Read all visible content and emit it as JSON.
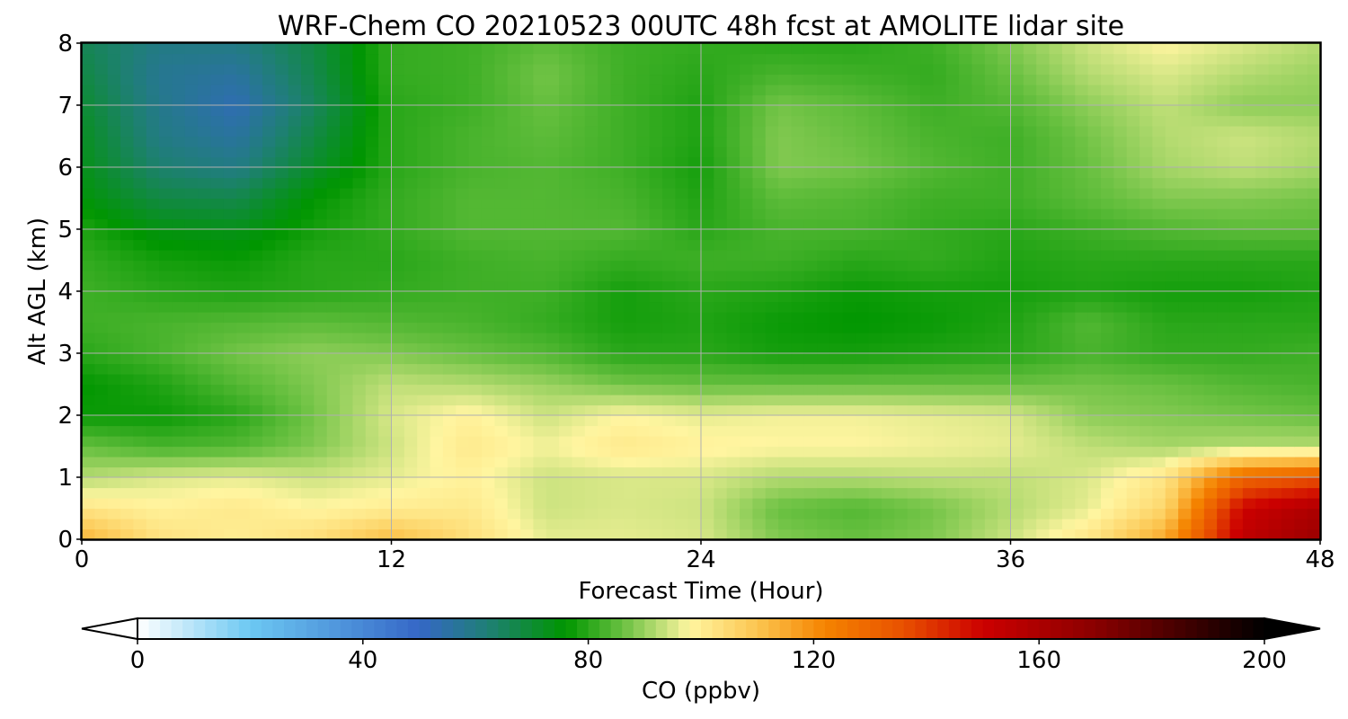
{
  "chart_data": {
    "type": "heatmap",
    "title": "WRF-Chem CO  20210523 00UTC 48h fcst at AMOLITE lidar site",
    "xlabel": "Forecast Time (Hour)",
    "ylabel": "Alt AGL (km)",
    "xlim": [
      0,
      48
    ],
    "ylim": [
      0,
      8
    ],
    "xticks": [
      "0",
      "12",
      "24",
      "36",
      "48"
    ],
    "yticks": [
      "0",
      "1",
      "2",
      "3",
      "4",
      "5",
      "6",
      "7",
      "8"
    ],
    "grid": true,
    "x": [
      0,
      3,
      6,
      9,
      12,
      15,
      18,
      21,
      24,
      27,
      30,
      33,
      36,
      39,
      42,
      45,
      48
    ],
    "y": [
      0,
      0.5,
      1,
      1.5,
      2,
      2.5,
      3,
      3.5,
      4,
      4.5,
      5,
      5.5,
      6,
      6.5,
      7,
      7.5,
      8
    ],
    "z": [
      [
        114,
        103,
        100,
        104,
        112,
        104,
        96,
        96,
        95,
        88,
        86,
        88,
        94,
        102,
        116,
        154,
        165
      ],
      [
        102,
        99,
        101,
        98,
        100,
        101,
        94,
        95,
        94,
        86,
        84,
        87,
        92,
        96,
        106,
        150,
        160
      ],
      [
        92,
        95,
        96,
        94,
        96,
        99,
        94,
        95,
        95,
        92,
        92,
        93,
        93,
        95,
        102,
        130,
        135
      ],
      [
        86,
        83,
        84,
        88,
        94,
        101,
        97,
        101,
        99,
        98,
        98,
        97,
        96,
        93,
        91,
        92,
        92
      ],
      [
        77,
        77,
        80,
        87,
        95,
        99,
        94,
        98,
        96,
        97,
        97,
        96,
        95,
        89,
        88,
        87,
        86
      ],
      [
        76,
        79,
        84,
        88,
        93,
        92,
        90,
        87,
        86,
        86,
        86,
        86,
        86,
        87,
        86,
        84,
        83
      ],
      [
        80,
        83,
        87,
        89,
        88,
        86,
        84,
        80,
        80,
        78,
        78,
        79,
        80,
        83,
        81,
        81,
        82
      ],
      [
        82,
        83,
        84,
        85,
        84,
        83,
        81,
        78,
        79,
        77,
        76,
        77,
        79,
        84,
        80,
        80,
        80
      ],
      [
        82,
        80,
        79,
        80,
        81,
        82,
        82,
        78,
        80,
        79,
        77,
        78,
        78,
        79,
        78,
        78,
        79
      ],
      [
        81,
        78,
        77,
        80,
        80,
        82,
        83,
        81,
        82,
        82,
        80,
        81,
        79,
        80,
        80,
        80,
        80
      ],
      [
        79,
        74,
        73,
        78,
        81,
        84,
        84,
        84,
        80,
        83,
        83,
        81,
        80,
        82,
        84,
        85,
        85
      ],
      [
        75,
        68,
        67,
        76,
        81,
        84,
        84,
        83,
        79,
        85,
        84,
        82,
        82,
        85,
        88,
        88,
        87
      ],
      [
        73,
        63,
        60,
        71,
        80,
        83,
        84,
        82,
        78,
        88,
        87,
        84,
        82,
        86,
        91,
        93,
        91
      ],
      [
        72,
        60,
        56,
        68,
        80,
        83,
        85,
        82,
        79,
        88,
        86,
        83,
        82,
        87,
        92,
        94,
        92
      ],
      [
        70,
        59,
        53,
        65,
        80,
        82,
        86,
        82,
        79,
        87,
        85,
        82,
        84,
        89,
        93,
        89,
        89
      ],
      [
        68,
        58,
        56,
        67,
        81,
        82,
        87,
        82,
        80,
        83,
        82,
        81,
        86,
        92,
        95,
        92,
        90
      ],
      [
        66,
        60,
        60,
        68,
        81,
        82,
        85,
        82,
        81,
        80,
        80,
        82,
        88,
        94,
        98,
        95,
        92
      ]
    ],
    "colorbar": {
      "label": "CO  (ppbv)",
      "min": 0,
      "max": 200,
      "ticks": [
        "0",
        "40",
        "80",
        "120",
        "160",
        "200"
      ],
      "extend": "both",
      "stops": [
        {
          "v": 0,
          "c": "#ffffff"
        },
        {
          "v": 20,
          "c": "#6cc8f2"
        },
        {
          "v": 50,
          "c": "#3567c7"
        },
        {
          "v": 62,
          "c": "#1f7f76"
        },
        {
          "v": 76,
          "c": "#009600"
        },
        {
          "v": 86,
          "c": "#68c040"
        },
        {
          "v": 98,
          "c": "#fff5a0"
        },
        {
          "v": 110,
          "c": "#fcc550"
        },
        {
          "v": 122,
          "c": "#f58400"
        },
        {
          "v": 136,
          "c": "#e85000"
        },
        {
          "v": 150,
          "c": "#cc0000"
        },
        {
          "v": 170,
          "c": "#8a0000"
        },
        {
          "v": 200,
          "c": "#000000"
        }
      ]
    }
  }
}
